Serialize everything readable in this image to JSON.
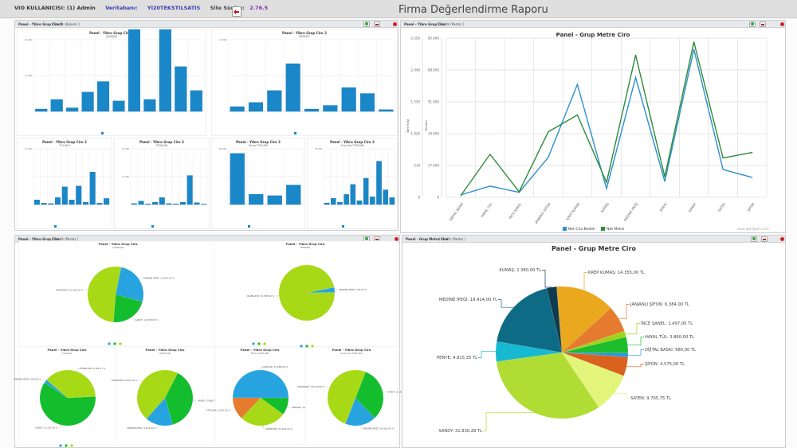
{
  "header": {
    "user_label": "VIO KULLANICISI: (1) Admin",
    "db_label": "Veritabanı:",
    "db_value": "YI20TEKSTILSATIS",
    "version_label": "Site Sürüm:",
    "version_value": "2.76.5",
    "exit_icon": "exit-door-icon",
    "report_title": "Firma Değerlendirme Raporu"
  },
  "panels": {
    "top_left": {
      "title": "Panel - Yibro Grup Ciro 2",
      "link": "[ Grafik (Bolum) ]"
    },
    "top_right": {
      "title": "Panel - Yibro Grup Ciro",
      "link": "[ Grafik (Paste) ]"
    },
    "bottom_left": {
      "title": "Panel - Yibro Grup Ciro",
      "link": "[ Grafik (Paste) ]"
    },
    "bottom_right": {
      "title": "Panel - Grup Metre Ciro",
      "link": "[ Grafik (Paste) ]"
    }
  },
  "mini_bar_charts": [
    {
      "title": "Panel - Yibro Grup Ciro 2",
      "subtitle": "ÇAMAŞIR",
      "ymax_label": "24.000",
      "ymid_label": "12.000",
      "values": [
        0.8,
        4,
        1.2,
        6.5,
        10,
        3.5,
        33,
        4,
        30,
        15,
        7
      ]
    },
    {
      "title": "Panel - Yibro Grup Ciro 2",
      "subtitle": "MERKEZ",
      "ymax_label": "12.000",
      "ymid_label": "",
      "values": [
        0.8,
        1.5,
        3.5,
        8,
        0.4,
        1,
        4,
        3,
        0.3
      ]
    },
    {
      "title": "Panel - Yibro Grup Ciro 2",
      "subtitle": "TOLAKLI",
      "ymax_label": "12.000",
      "ymid_label": "",
      "values": [
        1,
        0.3,
        0.2,
        1.5,
        3.8,
        1,
        4,
        0.5,
        7,
        0.3,
        1.3
      ]
    },
    {
      "title": "Panel - Yibro Grup Ciro 2",
      "subtitle": "STOKLAR",
      "ymax_label": "24.000",
      "ymid_label": "12.000",
      "values": [
        0.4,
        1.5,
        0.3,
        1,
        3,
        0.4,
        0.3,
        1,
        12.5,
        0.8,
        0.2
      ]
    },
    {
      "title": "Panel - Yibro Grup Ciro 2",
      "subtitle": "Firma TOPLAMI",
      "ymax_label": "60.000",
      "ymid_label": "",
      "values": [
        55,
        11,
        9.5,
        21
      ]
    },
    {
      "title": "Panel - Yibro Grup Ciro 2",
      "subtitle": "Grup Adı TOPLAMI",
      "ymax_label": "36.000",
      "ymid_label": "",
      "values": [
        1,
        4,
        1.5,
        6.5,
        13,
        2.5,
        17,
        5,
        28,
        9.5,
        4.5
      ]
    }
  ],
  "mini_pie_charts": [
    {
      "title": "Panel - Yibro Grup Ciro",
      "subtitle": "ÇAMAŞIR",
      "labels": [
        "MEDİNE İPEĞİ: 13.874,00 %",
        "SANDY: 14.578,00 %",
        "DİĞERLERİ: 21.000,00 %"
      ],
      "values": [
        26,
        22,
        52
      ]
    },
    {
      "title": "Panel - Yibro Grup Ciro",
      "subtitle": "MERKEZ",
      "labels": [
        "MEDİNE İPEĞİ: 765,00 %",
        "DİĞERLERİ: 32.798,00 %"
      ],
      "values": [
        3,
        97
      ]
    },
    {
      "title": "Panel - Yibro Grup Ciro",
      "subtitle": "TOLAKLI",
      "labels": [
        "SANDY: 13.555,00 %",
        "MEDİNE İPEĞİ: 360,00 %",
        "DİĞERLERİ: 8.383,13 %"
      ],
      "values": [
        60,
        2,
        38
      ]
    },
    {
      "title": "Panel - Yibro Grup Ciro",
      "subtitle": "STOKLAR",
      "labels": [
        "SANDY: 3.986,77 %",
        "MEDİNE İPEĞİ: 1.674,00 %",
        "DİĞERLERİ: 4.852,78 %"
      ],
      "values": [
        38,
        16,
        46
      ]
    },
    {
      "title": "Panel - Yibro Grup Ciro",
      "subtitle": "Firma TOPLAMI",
      "labels": [
        "ÇAMAŞIR: 33.689,00 %",
        "MERKEZ: 15.239,00 %",
        "DİĞERLERİ: 22.016,00 %",
        "STOKLAR: 8.835,00 %"
      ],
      "values": [
        50,
        10,
        27,
        13
      ]
    },
    {
      "title": "Panel - Yibro Grup Ciro",
      "subtitle": "Grup Adı TOPLAMI",
      "labels": [
        "SANDY: 31.830,28 %",
        "MEDİNE İPEĞİ: 18.424,00 %",
        "DİĞERLERİ: 46.512,00 %"
      ],
      "values": [
        32,
        18,
        50
      ]
    }
  ],
  "chart_data": [
    {
      "type": "line",
      "title": "Panel - Grup Metre Ciro",
      "categories": [
        "DİJİTAL BASKI",
        "HAYAL TÜL",
        "İNCE ŞANEL",
        "JANJANLI ŞİFON",
        "KREP KUMAŞ",
        "KUMAŞ",
        "MEDİNE İPEĞİ",
        "PENYE",
        "SANDY",
        "SATEN",
        "ŞİFON"
      ],
      "series": [
        {
          "name": "Net Ciro Bedeli",
          "axis": "left",
          "color": "#2d8fcf",
          "values": [
            40,
            180,
            80,
            640,
            1810,
            140,
            1920,
            255,
            2370,
            445,
            320
          ]
        },
        {
          "name": "Net Metre",
          "axis": "right",
          "color": "#2e8b3a",
          "values": [
            1000,
            23000,
            3000,
            35000,
            44000,
            8000,
            76000,
            11000,
            83000,
            21000,
            24000
          ]
        }
      ],
      "ylabel_left": "Net Fiyat",
      "ylabel_right": "Toplam",
      "yticks_left": [
        "0",
        "510",
        "1.020",
        "1.530",
        "2.040",
        "2.550"
      ],
      "yticks_right": [
        "0",
        "17.000",
        "34.000",
        "51.000",
        "68.000",
        "85.000"
      ],
      "ylim_left": [
        0,
        2550
      ],
      "ylim_right": [
        0,
        85000
      ],
      "legend": "bottom",
      "grid": true,
      "credit": "www.jqwidgets.com"
    },
    {
      "type": "pie",
      "title": "Panel - Grup Metre Ciro",
      "slices": [
        {
          "label": "KREP KUMAŞ: 14.355,00 TL",
          "value": 14355,
          "color": "#e9a81e"
        },
        {
          "label": "JANJANLI ŞİFON: 6.384,00 TL",
          "value": 6384,
          "color": "#e57b2e"
        },
        {
          "label": "İNCE ŞANEL: 1.497,00 TL",
          "value": 1497,
          "color": "#9fd21b"
        },
        {
          "label": "HAYAL TÜL: 3.860,00 TL",
          "value": 3860,
          "color": "#1dbd2e"
        },
        {
          "label": "DİJİTAL BASKI: 980,00 TL",
          "value": 980,
          "color": "#2e96e0"
        },
        {
          "label": "ŞİFON: 4.575,00 TL",
          "value": 4575,
          "color": "#d9621e"
        },
        {
          "label": "SATEN: 9.705,75 TL",
          "value": 9705.75,
          "color": "#e2f57a"
        },
        {
          "label": "SANDY: 31.830,28 TL",
          "value": 31830.28,
          "color": "#b0dc33"
        },
        {
          "label": "PENYE: 4.815,35 TL",
          "value": 4815.35,
          "color": "#17b9d1"
        },
        {
          "label": "MEDİNE İPEĞİ: 18.424,00 TL",
          "value": 18424,
          "color": "#0e6b86"
        },
        {
          "label": "KUMAŞ: 2.380,00 TL",
          "value": 2380,
          "color": "#0f3b4f"
        }
      ]
    }
  ]
}
